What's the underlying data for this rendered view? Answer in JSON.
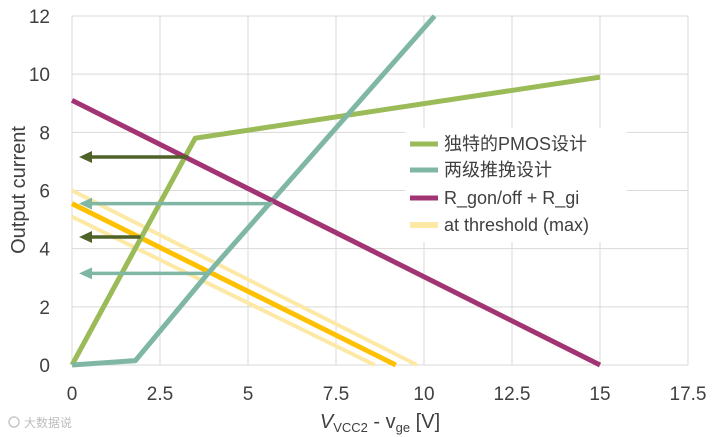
{
  "chart_data": {
    "type": "line",
    "title": "",
    "xlabel_main": "V",
    "xlabel_sub1": "VCC2",
    "xlabel_mid": " - v",
    "xlabel_sub2": "ge",
    "xlabel_unit": " [V]",
    "ylabel": "Output current",
    "xlim": [
      0,
      17.5
    ],
    "ylim": [
      0,
      12
    ],
    "xticks": [
      "0",
      "2.5",
      "5",
      "7.5",
      "10",
      "12.5",
      "15",
      "17.5"
    ],
    "yticks": [
      "0",
      "2",
      "4",
      "6",
      "8",
      "10",
      "12"
    ],
    "grid": true,
    "legend_position": "right",
    "series": [
      {
        "name": "独特的PMOS设计",
        "color": "#9bbb59",
        "width": 5,
        "x": [
          0,
          3.5,
          15
        ],
        "y": [
          0,
          7.8,
          9.9
        ]
      },
      {
        "name": "两级推挽设计",
        "color": "#7fb7a4",
        "width": 5,
        "x": [
          0,
          1.8,
          3.9,
          10.3
        ],
        "y": [
          0,
          0.15,
          3.2,
          12
        ]
      },
      {
        "name": "R_gon/off + R_gi",
        "color": "#a33474",
        "width": 5,
        "x": [
          0,
          15
        ],
        "y": [
          9.1,
          0
        ]
      },
      {
        "name": "at threshold (max)",
        "color": "#fde9a6",
        "width": 4,
        "x": [
          0,
          8.6
        ],
        "y": [
          5.1,
          0
        ]
      },
      {
        "name": "",
        "color": "#fde9a6",
        "width": 4,
        "x": [
          0,
          9.8
        ],
        "y": [
          6.0,
          0
        ]
      },
      {
        "name": "",
        "color": "#ffc000",
        "width": 5,
        "x": [
          0,
          9.2
        ],
        "y": [
          5.55,
          0
        ]
      }
    ],
    "arrows": [
      {
        "color": "#4f6228",
        "y": 7.15,
        "x_from": 3.3,
        "x_to": 0.2
      },
      {
        "color": "#7fb7a4",
        "y": 5.55,
        "x_from": 5.7,
        "x_to": 0.2
      },
      {
        "color": "#4f6228",
        "y": 4.4,
        "x_from": 1.95,
        "x_to": 0.2
      },
      {
        "color": "#7fb7a4",
        "y": 3.15,
        "x_from": 3.9,
        "x_to": 0.2
      }
    ]
  },
  "watermark": "大数据说",
  "colors": {
    "grid": "#d9d9d9",
    "text": "#404040"
  }
}
